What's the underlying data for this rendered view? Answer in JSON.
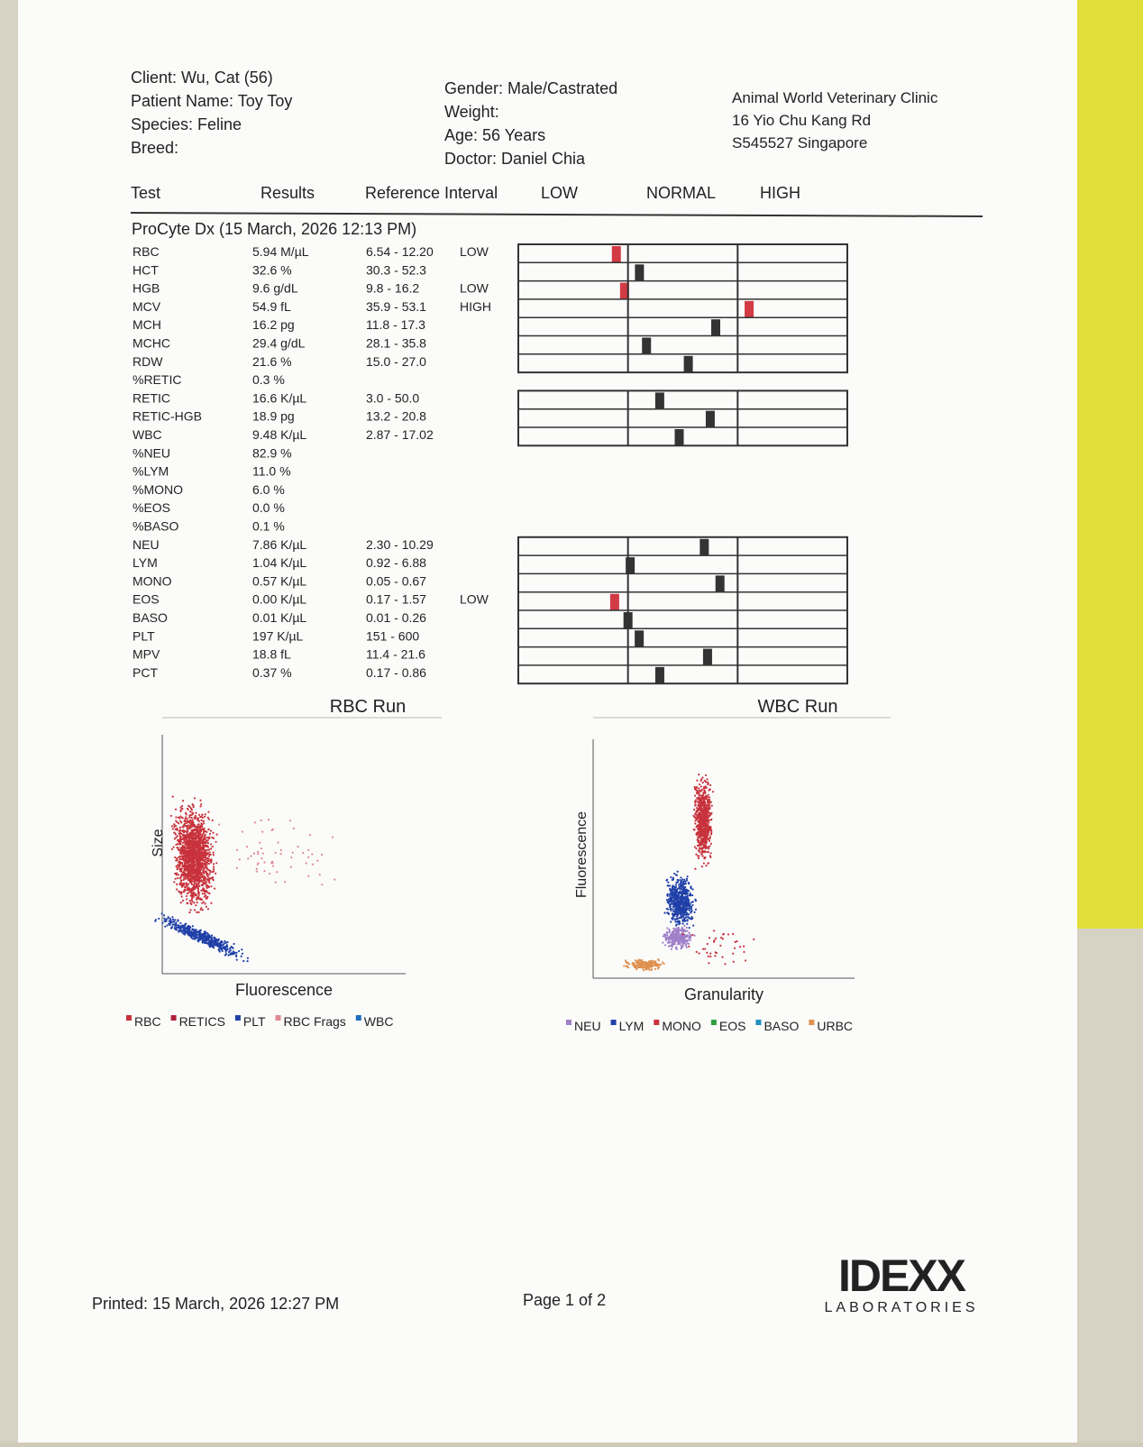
{
  "header": {
    "left": [
      "Client: Wu, Cat (56)",
      "Patient Name: Toy Toy",
      "Species: Feline",
      "Breed:"
    ],
    "middle": [
      "Gender: Male/Castrated",
      "Weight:",
      "Age: 56 Years",
      "Doctor: Daniel Chia"
    ],
    "clinic": [
      "Animal World Veterinary Clinic",
      "16 Yio Chu Kang Rd",
      "S545527 Singapore"
    ]
  },
  "columns": [
    "Test",
    "Results",
    "Reference Interval",
    "LOW",
    "NORMAL",
    "HIGH"
  ],
  "section": "ProCyte Dx (15 March, 2026 12:13 PM)",
  "rows": [
    {
      "test": "RBC",
      "result": "5.94 M/µL",
      "reference": "6.54 - 12.20",
      "flag": "LOW"
    },
    {
      "test": "HCT",
      "result": "32.6 %",
      "reference": "30.3 - 52.3"
    },
    {
      "test": "HGB",
      "result": "9.6 g/dL",
      "reference": "9.8 - 16.2",
      "flag": "LOW"
    },
    {
      "test": "MCV",
      "result": "54.9 fL",
      "reference": "35.9 - 53.1",
      "flag": "HIGH"
    },
    {
      "test": "MCH",
      "result": "16.2 pg",
      "reference": "11.8 - 17.3"
    },
    {
      "test": "MCHC",
      "result": "29.4 g/dL",
      "reference": "28.1 - 35.8"
    },
    {
      "test": "RDW",
      "result": "21.6 %",
      "reference": "15.0 - 27.0"
    },
    {
      "test": "%RETIC",
      "result": "0.3 %"
    },
    {
      "test": "RETIC",
      "result": "16.6 K/µL",
      "reference": "3.0 - 50.0"
    },
    {
      "test": "RETIC-HGB",
      "result": "18.9 pg",
      "reference": "13.2 - 20.8"
    },
    {
      "test": "WBC",
      "result": "9.48 K/µL",
      "reference": "2.87 - 17.02"
    },
    {
      "test": "%NEU",
      "result": "82.9 %"
    },
    {
      "test": "%LYM",
      "result": "11.0 %"
    },
    {
      "test": "%MONO",
      "result": "6.0 %"
    },
    {
      "test": "%EOS",
      "result": "0.0 %"
    },
    {
      "test": "%BASO",
      "result": "0.1 %"
    },
    {
      "test": "NEU",
      "result": "7.86 K/µL",
      "reference": "2.30 - 10.29"
    },
    {
      "test": "LYM",
      "result": "1.04 K/µL",
      "reference": "0.92 - 6.88"
    },
    {
      "test": "MONO",
      "result": "0.57 K/µL",
      "reference": "0.05 - 0.67"
    },
    {
      "test": "EOS",
      "result": "0.00 K/µL",
      "reference": "0.17 - 1.57",
      "flag": "LOW"
    },
    {
      "test": "BASO",
      "result": "0.01 K/µL",
      "reference": "0.01 - 0.26"
    },
    {
      "test": "PLT",
      "result": "197 K/µL",
      "reference": "151 - 600"
    },
    {
      "test": "MPV",
      "result": "18.8 fL",
      "reference": "11.4 - 21.6"
    },
    {
      "test": "PCT",
      "result": "0.37 %",
      "reference": "0.17 - 0.86"
    }
  ],
  "charts": [
    {
      "title": "RBC Run",
      "xlabel": "Fluorescence",
      "ylabel": "Size",
      "legend": [
        {
          "name": "RBC",
          "color": "#c8323c"
        },
        {
          "name": "RETICS",
          "color": "#b0203a"
        },
        {
          "name": "PLT",
          "color": "#2040a8"
        },
        {
          "name": "RBC Frags",
          "color": "#e08890"
        },
        {
          "name": "WBC",
          "color": "#1f6fc0"
        }
      ]
    },
    {
      "title": "WBC Run",
      "xlabel": "Granularity",
      "ylabel": "Fluorescence",
      "legend": [
        {
          "name": "NEU",
          "color": "#a080c8"
        },
        {
          "name": "LYM",
          "color": "#2040a8"
        },
        {
          "name": "MONO",
          "color": "#c8323c"
        },
        {
          "name": "EOS",
          "color": "#30a040"
        },
        {
          "name": "BASO",
          "color": "#2090c0"
        },
        {
          "name": "URBC",
          "color": "#e09050"
        }
      ]
    }
  ],
  "footer": {
    "printed": "Printed: 15 March, 2026 12:27 PM",
    "page": "Page 1 of 2",
    "logo": "IDEXX",
    "logo_sub": "LABORATORIES"
  }
}
